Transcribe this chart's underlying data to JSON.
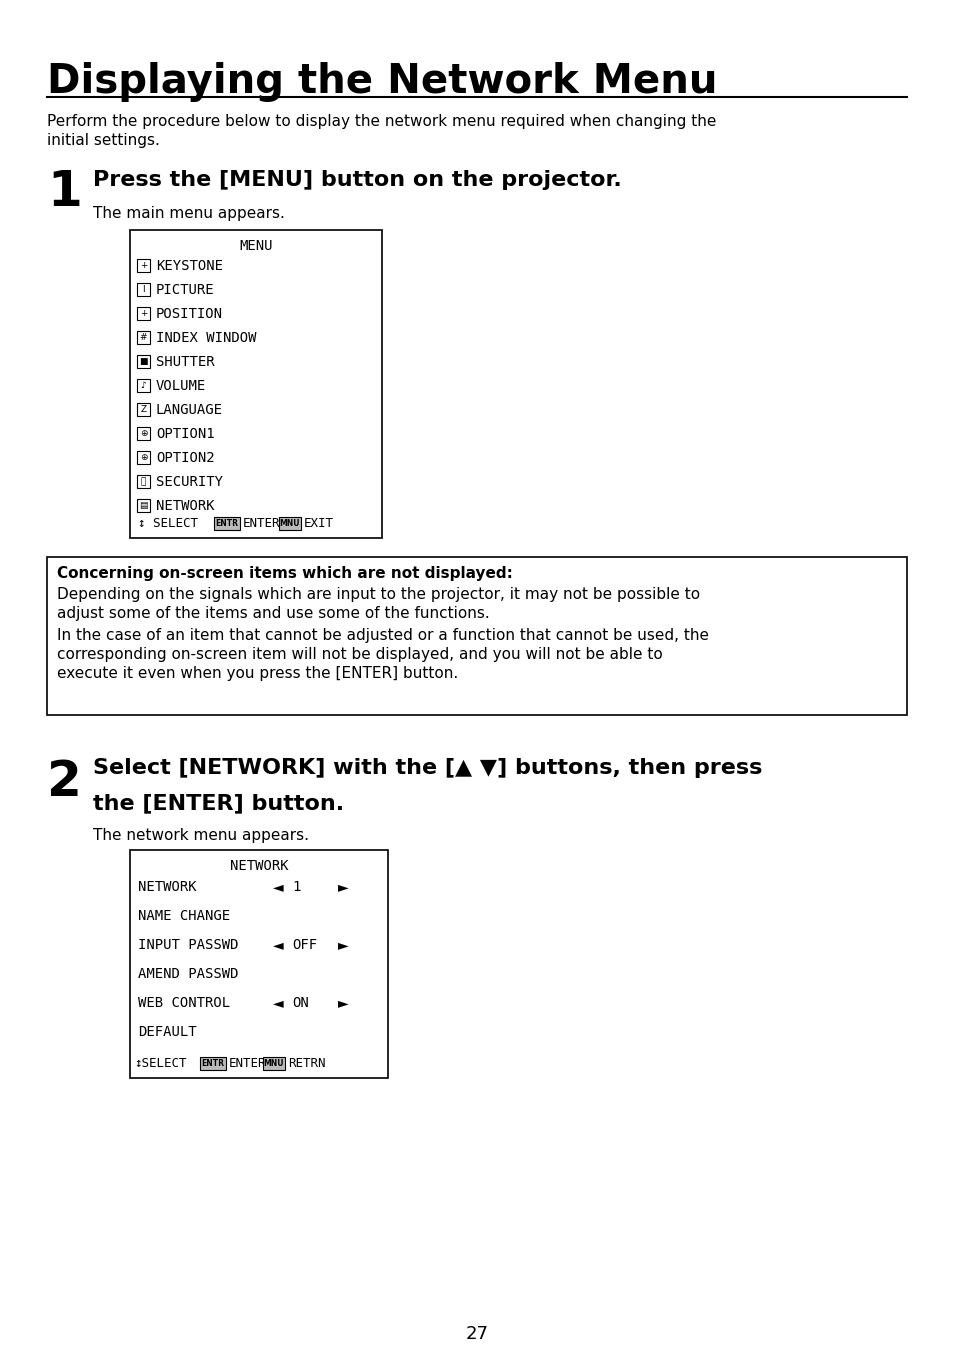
{
  "title": "Displaying the Network Menu",
  "intro_line1": "Perform the procedure below to display the network menu required when changing the",
  "intro_line2": "initial settings.",
  "step1_number": "1",
  "step1_heading": "Press the [MENU] button on the projector.",
  "step1_sub": "The main menu appears.",
  "menu1_title": "MENU",
  "menu1_items": [
    "KEYSTONE",
    "PICTURE",
    "POSITION",
    "INDEX WINDOW",
    "SHUTTER",
    "VOLUME",
    "LANGUAGE",
    "OPTION1",
    "OPTION2",
    "SECURITY",
    "NETWORK"
  ],
  "note_bold": "Concerning on-screen items which are not displayed:",
  "note_line1": "Depending on the signals which are input to the projector, it may not be possible to",
  "note_line2": "adjust some of the items and use some of the functions.",
  "note_line3": "In the case of an item that cannot be adjusted or a function that cannot be used, the",
  "note_line4": "corresponding on-screen item will not be displayed, and you will not be able to",
  "note_line5": "execute it even when you press the [ENTER] button.",
  "step2_number": "2",
  "step2_heading_line1": "Select [NETWORK] with the [",
  "step2_heading_arrows": "▲ ▼",
  "step2_heading_line1_end": "] buttons, then press",
  "step2_heading_line2": "the [ENTER] button.",
  "step2_sub": "The network menu appears.",
  "menu2_title": "NETWORK",
  "menu2_items": [
    [
      "NETWORK",
      "1"
    ],
    [
      "NAME CHANGE",
      ""
    ],
    [
      "INPUT PASSWD",
      "OFF"
    ],
    [
      "AMEND PASSWD",
      ""
    ],
    [
      "WEB CONTROL",
      "ON"
    ],
    [
      "DEFAULT",
      ""
    ]
  ],
  "page_number": "27",
  "bg_color": "#ffffff",
  "text_color": "#000000",
  "select_arrow": "↕",
  "left_arrow": "◄",
  "right_arrow": "►",
  "updown_arrow": "↕"
}
